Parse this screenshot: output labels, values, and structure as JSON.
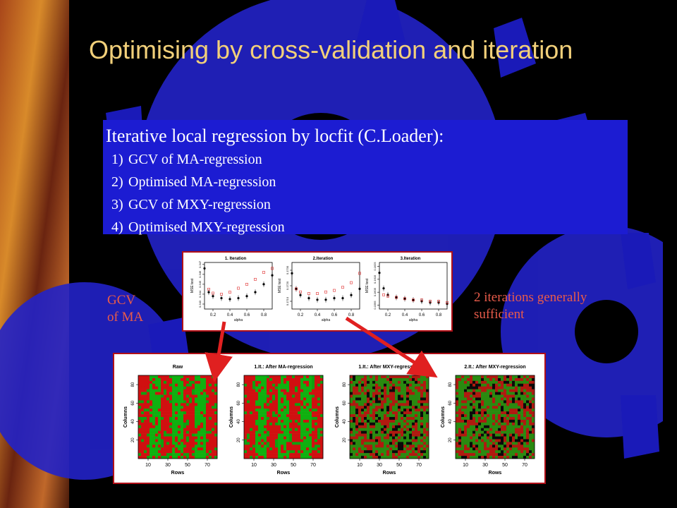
{
  "slide": {
    "title": "Optimising by cross-validation and iteration",
    "heading": "Iterative local regression by locfit (C.Loader):",
    "steps": [
      {
        "num": "1)",
        "text": "GCV of  MA-regression"
      },
      {
        "num": "2)",
        "text": "Optimised MA-regression"
      },
      {
        "num": "3)",
        "text": "GCV of MXY-regression"
      },
      {
        "num": "4)",
        "text": "Optimised MXY-regression"
      }
    ],
    "left_note": [
      "GCV",
      "of MA"
    ],
    "right_note": [
      "2 iterations generally",
      "sufficient"
    ]
  },
  "colors": {
    "title": "#f2d07a",
    "box": "#1c1cd2",
    "note": "#e85b4a",
    "arrow": "#e02020",
    "frame": "#b01018"
  },
  "chart_data": [
    {
      "type": "scatter",
      "title": "1. Iteration",
      "xlabel": "alpha",
      "ylabel": "MSE test",
      "xlim": [
        0.1,
        0.9
      ],
      "xticks": [
        "0.2",
        "0.4",
        "0.6",
        "0.8"
      ],
      "yticks": [
        "0.343",
        "0.344",
        "0.345",
        "0.346",
        "0.347"
      ],
      "ylim": [
        0.3425,
        0.3472
      ],
      "series": [
        {
          "x": [
            0.1,
            0.15,
            0.2,
            0.3,
            0.4,
            0.5,
            0.6,
            0.7,
            0.8,
            0.9
          ],
          "y": [
            0.3466,
            0.3442,
            0.3438,
            0.3436,
            0.3435,
            0.3436,
            0.3438,
            0.3442,
            0.345,
            0.3459
          ],
          "color": "#000"
        },
        {
          "x": [
            0.15,
            0.2,
            0.3,
            0.4,
            0.5,
            0.6,
            0.7,
            0.8,
            0.9
          ],
          "y": [
            0.3445,
            0.3441,
            0.344,
            0.3442,
            0.3446,
            0.345,
            0.3455,
            0.3462,
            0.3466
          ],
          "color": "#e03030"
        }
      ]
    },
    {
      "type": "scatter",
      "title": "2.Iteration",
      "xlabel": "alpha",
      "ylabel": "MSE test",
      "xlim": [
        0.1,
        0.9
      ],
      "xticks": [
        "0.2",
        "0.4",
        "0.6",
        "0.8"
      ],
      "yticks": [
        "0.1710",
        "0.1720",
        "0.1730"
      ],
      "ylim": [
        0.1705,
        0.1735
      ],
      "series": [
        {
          "x": [
            0.1,
            0.15,
            0.2,
            0.3,
            0.4,
            0.5,
            0.6,
            0.7,
            0.8,
            0.9
          ],
          "y": [
            0.1728,
            0.1718,
            0.1714,
            0.1712,
            0.1711,
            0.1711,
            0.1712,
            0.1712,
            0.1714,
            0.1718
          ],
          "color": "#000"
        },
        {
          "x": [
            0.15,
            0.2,
            0.3,
            0.4,
            0.5,
            0.6,
            0.7,
            0.8,
            0.9
          ],
          "y": [
            0.1718,
            0.1716,
            0.1715,
            0.1715,
            0.1716,
            0.1717,
            0.1719,
            0.1722,
            0.1728
          ],
          "color": "#e03030"
        }
      ]
    },
    {
      "type": "scatter",
      "title": "3.Iteration",
      "xlabel": "alpha",
      "ylabel": "MSE test",
      "xlim": [
        0.1,
        0.9
      ],
      "xticks": [
        "0.2",
        "0.4",
        "0.6",
        "0.8"
      ],
      "yticks": [
        "0.1595",
        "0.1605",
        "0.1615",
        "0.1625"
      ],
      "ylim": [
        0.1592,
        0.1628
      ],
      "series": [
        {
          "x": [
            0.1,
            0.15,
            0.2,
            0.3,
            0.4,
            0.5,
            0.6,
            0.7,
            0.8,
            0.9
          ],
          "y": [
            0.162,
            0.1608,
            0.1603,
            0.1601,
            0.16,
            0.1599,
            0.1598,
            0.1597,
            0.1597,
            0.1596
          ],
          "color": "#000"
        },
        {
          "x": [
            0.15,
            0.2,
            0.3,
            0.4,
            0.5,
            0.6,
            0.7,
            0.8,
            0.9
          ],
          "y": [
            0.1603,
            0.1602,
            0.1601,
            0.16,
            0.1599,
            0.1599,
            0.1598,
            0.1598,
            0.1597
          ],
          "color": "#e03030"
        }
      ]
    },
    {
      "type": "heatmap",
      "title": "Raw",
      "xlabel": "Rows",
      "ylabel": "Columns",
      "xticks": [
        "10",
        "30",
        "50",
        "70"
      ],
      "yticks": [
        "20",
        "40",
        "60",
        "80"
      ],
      "pattern": "stripes"
    },
    {
      "type": "heatmap",
      "title": "1.It.: After MA-regression",
      "xlabel": "Rows",
      "ylabel": "Columns",
      "xticks": [
        "10",
        "30",
        "50",
        "70"
      ],
      "yticks": [
        "20",
        "40",
        "60",
        "80"
      ],
      "pattern": "stripes"
    },
    {
      "type": "heatmap",
      "title": "1.It.: After MXY-regression",
      "xlabel": "Rows",
      "ylabel": "Columns",
      "xticks": [
        "10",
        "30",
        "50",
        "70"
      ],
      "yticks": [
        "20",
        "40",
        "60",
        "80"
      ],
      "pattern": "mixed"
    },
    {
      "type": "heatmap",
      "title": "2.It.: After MXY-regression",
      "xlabel": "Rows",
      "ylabel": "Columns",
      "xticks": [
        "10",
        "30",
        "50",
        "70"
      ],
      "yticks": [
        "20",
        "40",
        "60",
        "80"
      ],
      "pattern": "mixed"
    }
  ]
}
